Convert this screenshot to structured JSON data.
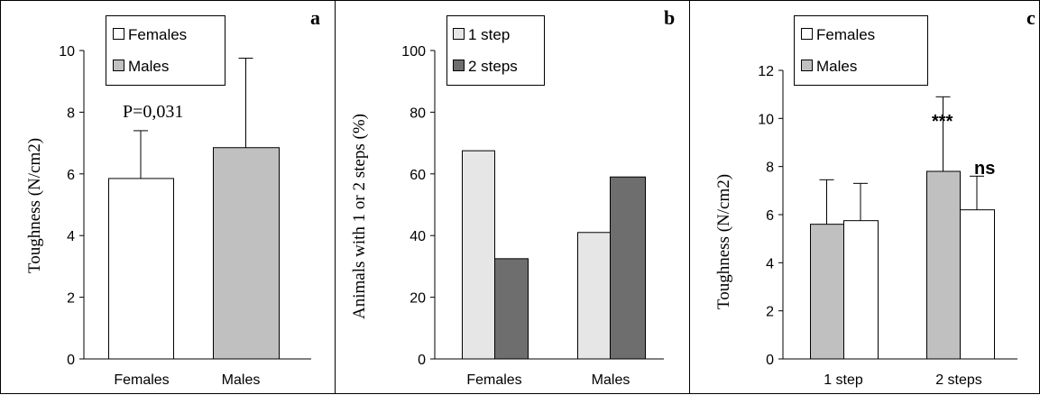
{
  "chart_data": [
    {
      "type": "bar",
      "panel": "a",
      "categories": [
        "Females",
        "Males"
      ],
      "series": [
        {
          "name": "Females",
          "values": [
            5.85,
            null
          ],
          "errors": [
            1.55,
            null
          ],
          "color": "#ffffff"
        },
        {
          "name": "Males",
          "values": [
            null,
            6.85
          ],
          "errors": [
            null,
            2.9
          ],
          "color": "#c0c0c0"
        }
      ],
      "ylabel": "Toughness (N/cm2)",
      "ylim": [
        0,
        10
      ],
      "yticks": [
        "0",
        "2",
        "4",
        "6",
        "8",
        "10"
      ],
      "legend_placement": "top-left",
      "annotation": "P=0,031"
    },
    {
      "type": "bar",
      "panel": "b",
      "categories": [
        "Females",
        "Males"
      ],
      "series": [
        {
          "name": "1 step",
          "values": [
            67.5,
            41
          ],
          "color": "#e6e6e6"
        },
        {
          "name": "2 steps",
          "values": [
            32.5,
            59
          ],
          "color": "#6e6e6e"
        }
      ],
      "ylabel": "Animals with 1 or 2 steps (%)",
      "ylim": [
        0,
        100
      ],
      "yticks": [
        "0",
        "20",
        "40",
        "60",
        "80",
        "100"
      ],
      "legend_placement": "top-left"
    },
    {
      "type": "bar",
      "panel": "c",
      "categories": [
        "1 step",
        "2 steps"
      ],
      "series": [
        {
          "name": "Males",
          "values": [
            5.6,
            7.8
          ],
          "errors": [
            1.85,
            3.1
          ],
          "color": "#c0c0c0"
        },
        {
          "name": "Females",
          "values": [
            5.75,
            6.2
          ],
          "errors": [
            1.55,
            1.4
          ],
          "color": "#ffffff"
        }
      ],
      "legend": [
        "Females",
        "Males"
      ],
      "ylabel": "Toughness (N/cm2)",
      "ylim": [
        0,
        12
      ],
      "yticks": [
        "0",
        "2",
        "4",
        "6",
        "8",
        "10",
        "12"
      ],
      "legend_placement": "top-left",
      "annotations": [
        "***",
        "ns"
      ]
    }
  ]
}
